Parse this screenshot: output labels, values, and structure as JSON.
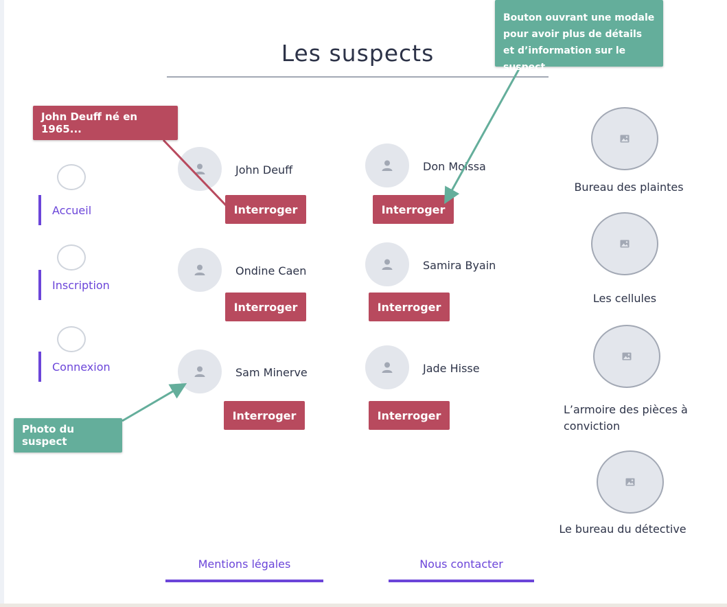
{
  "title": "Les suspects",
  "nav": {
    "items": [
      {
        "label": "Accueil"
      },
      {
        "label": "Inscription"
      },
      {
        "label": "Connexion"
      }
    ]
  },
  "suspects": [
    {
      "name": "John Deuff",
      "button": "Interroger"
    },
    {
      "name": "Don Moissa",
      "button": "Interroger"
    },
    {
      "name": "Ondine Caen",
      "button": "Interroger"
    },
    {
      "name": "Samira Byain",
      "button": "Interroger"
    },
    {
      "name": "Sam Minerve",
      "button": "Interroger"
    },
    {
      "name": "Jade Hisse",
      "button": "Interroger"
    }
  ],
  "rooms": [
    {
      "label": "Bureau des plaintes"
    },
    {
      "label": "Les cellules"
    },
    {
      "label": "L’armoire des pièces à conviction"
    },
    {
      "label": "Le bureau du détective"
    }
  ],
  "footer": {
    "legal": "Mentions légales",
    "contact": "Nous contacter"
  },
  "annotations": {
    "bio": "John Deuff né en 1965...",
    "modal": "Bouton ouvrant une modale pour avoir plus de détails et d’information sur le suspect",
    "photo": "Photo du suspect"
  },
  "colors": {
    "accent": "#6b45d9",
    "button": "#b84a5e",
    "annotation_green": "#64ae9b",
    "placeholder": "#e3e6ec"
  },
  "icons": {
    "avatar": "user-icon",
    "room": "image-icon"
  }
}
